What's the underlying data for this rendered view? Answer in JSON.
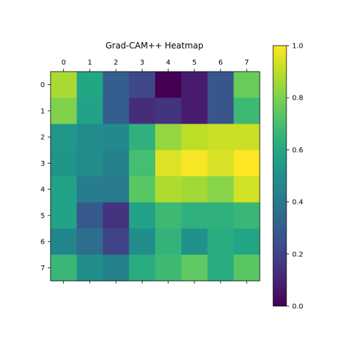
{
  "chart_data": {
    "type": "heatmap",
    "title": "Grad-CAM++ Heatmap",
    "xlabel": "",
    "ylabel": "",
    "x_ticks": [
      "0",
      "1",
      "2",
      "3",
      "4",
      "5",
      "6",
      "7"
    ],
    "y_ticks": [
      "0",
      "1",
      "2",
      "3",
      "4",
      "5",
      "6",
      "7"
    ],
    "colormap": "viridis",
    "vmin": 0.0,
    "vmax": 1.0,
    "colorbar_ticks": [
      "0.0",
      "0.2",
      "0.4",
      "0.6",
      "0.8",
      "1.0"
    ],
    "values": [
      [
        0.87,
        0.6,
        0.3,
        0.22,
        0.0,
        0.08,
        0.27,
        0.77
      ],
      [
        0.81,
        0.58,
        0.3,
        0.13,
        0.15,
        0.08,
        0.27,
        0.68
      ],
      [
        0.53,
        0.48,
        0.47,
        0.64,
        0.84,
        0.9,
        0.92,
        0.92
      ],
      [
        0.52,
        0.48,
        0.44,
        0.7,
        0.95,
        0.99,
        0.94,
        1.0
      ],
      [
        0.58,
        0.42,
        0.41,
        0.74,
        0.88,
        0.86,
        0.82,
        0.93
      ],
      [
        0.58,
        0.28,
        0.15,
        0.58,
        0.68,
        0.64,
        0.64,
        0.67
      ],
      [
        0.46,
        0.36,
        0.2,
        0.49,
        0.65,
        0.51,
        0.62,
        0.59
      ],
      [
        0.67,
        0.49,
        0.44,
        0.62,
        0.68,
        0.75,
        0.62,
        0.74
      ]
    ]
  }
}
